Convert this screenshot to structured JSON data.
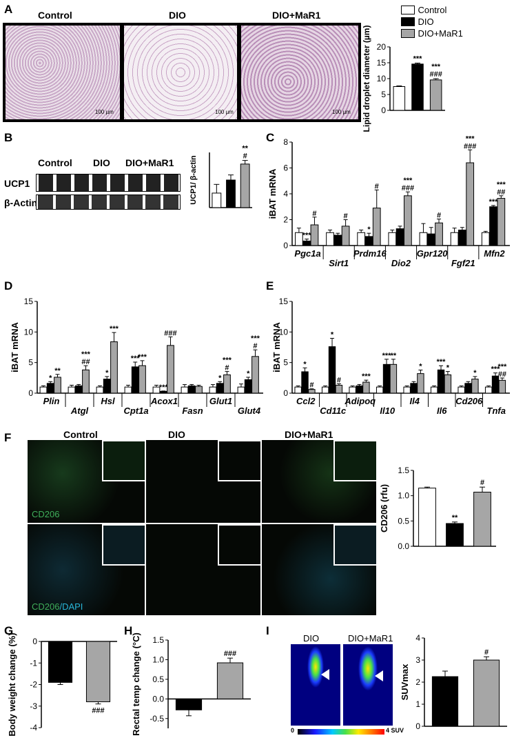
{
  "panels": {
    "A": "A",
    "B": "B",
    "C": "C",
    "D": "D",
    "E": "E",
    "F": "F",
    "G": "G",
    "H": "H",
    "I": "I"
  },
  "legend": [
    "Control",
    "DIO",
    "DIO+MaR1"
  ],
  "colors": {
    "control": "#ffffff",
    "dio": "#000000",
    "mar1": "#a6a6a6",
    "he_pink": "#d8c4d6",
    "dark": "#050805",
    "green": "#3fae5a",
    "cyan": "#29b6d8"
  },
  "panelA": {
    "titles": [
      "Control",
      "DIO",
      "DIO+MaR1"
    ],
    "scale_bar": "100 µm"
  },
  "panelB": {
    "titles": [
      "Control",
      "DIO",
      "DIO+MaR1"
    ],
    "rows": [
      "UCP1",
      "β-Actin"
    ]
  },
  "panelF": {
    "titles": [
      "Control",
      "DIO",
      "DIO+MaR1"
    ],
    "stain1": "CD206",
    "stain2_a": "CD206",
    "stain2_b": "/DAPI"
  },
  "panelI": {
    "titles": [
      "DIO",
      "DIO+MaR1"
    ],
    "colorbar_min": "0",
    "colorbar_max": "4 SUV"
  },
  "chart_data": [
    {
      "id": "A",
      "type": "bar",
      "ylabel": "Lipid droplet diameter (µm)",
      "yticks": [
        "0",
        "5",
        "10",
        "15",
        "20"
      ],
      "ylim": [
        0,
        20
      ],
      "categories": [
        "Control",
        "DIO",
        "DIO+MaR1"
      ],
      "values": [
        7.5,
        14.6,
        9.6
      ],
      "errors": [
        0.2,
        0.3,
        0.4
      ],
      "annotations": [
        "",
        "***",
        "***|###"
      ]
    },
    {
      "id": "B",
      "type": "bar",
      "ylabel": "UCP1/ β-actin",
      "categories": [
        "Control",
        "DIO",
        "DIO+MaR1"
      ],
      "values": [
        1.0,
        1.9,
        3.0
      ],
      "errors": [
        0.6,
        0.35,
        0.25
      ],
      "annotations": [
        "",
        "",
        "**|#"
      ],
      "ylim": [
        0,
        3.8
      ]
    },
    {
      "id": "C",
      "type": "bar",
      "ylabel": "iBAT mRNA",
      "yticks": [
        "0",
        "2",
        "4",
        "6",
        "8"
      ],
      "ylim": [
        0,
        8
      ],
      "categories": [
        "Pgc1a",
        "Sirt1",
        "Prdm16",
        "Dio2",
        "Gpr120",
        "Fgf21",
        "Mfn2"
      ],
      "series": [
        {
          "name": "Control",
          "values": [
            1.0,
            1.0,
            1.0,
            1.0,
            1.0,
            1.0,
            1.0
          ],
          "errors": [
            0.35,
            0.2,
            0.2,
            0.2,
            0.7,
            0.35,
            0.1
          ]
        },
        {
          "name": "DIO",
          "values": [
            0.35,
            0.8,
            0.7,
            1.3,
            0.9,
            1.2,
            3.0
          ],
          "errors": [
            0.15,
            0.15,
            0.25,
            0.2,
            0.5,
            0.2,
            0.1
          ]
        },
        {
          "name": "DIO+MaR1",
          "values": [
            1.6,
            1.5,
            2.9,
            3.85,
            1.75,
            6.4,
            3.65
          ],
          "errors": [
            0.6,
            0.5,
            1.4,
            0.3,
            0.3,
            1.0,
            0.2
          ]
        }
      ],
      "annotations": [
        [
          "",
          "***",
          "#"
        ],
        [
          "",
          "",
          "#"
        ],
        [
          "",
          "*",
          "#"
        ],
        [
          "",
          "",
          "***|###"
        ],
        [
          "",
          "",
          "#"
        ],
        [
          "",
          "",
          "***|###"
        ],
        [
          "",
          "***",
          "***|##"
        ]
      ]
    },
    {
      "id": "D",
      "type": "bar",
      "ylabel": "iBAT mRNA",
      "yticks": [
        "0",
        "5",
        "10",
        "15"
      ],
      "ylim": [
        0,
        15
      ],
      "categories": [
        "Plin",
        "Atgl",
        "Hsl",
        "Cpt1a",
        "Acox1",
        "Fasn",
        "Glut1",
        "Glut4"
      ],
      "series": [
        {
          "name": "Control",
          "values": [
            1.0,
            1.0,
            1.0,
            1.0,
            1.0,
            1.0,
            1.0,
            1.0
          ],
          "errors": [
            0.2,
            0.3,
            0.2,
            0.3,
            0.3,
            0.4,
            0.4,
            0.5
          ]
        },
        {
          "name": "DIO",
          "values": [
            1.6,
            1.2,
            2.3,
            4.3,
            0.3,
            1.2,
            1.6,
            2.2
          ]
        },
        {
          "name": "DIO+MaR1",
          "values": [
            2.6,
            3.8,
            8.4,
            4.5,
            7.8,
            1.1,
            3.0,
            6.0
          ]
        }
      ],
      "annotations": [
        [
          "",
          "*",
          "**"
        ],
        [
          "",
          "",
          "***|##"
        ],
        [
          "",
          "*",
          "***"
        ],
        [
          "",
          "***",
          "***"
        ],
        [
          "",
          "***",
          "###"
        ],
        [
          "",
          "",
          ""
        ],
        [
          "",
          "*",
          "***|#"
        ],
        [
          "",
          "*",
          "***|#"
        ]
      ]
    },
    {
      "id": "E",
      "type": "bar",
      "ylabel": "iBAT mRNA",
      "yticks": [
        "0",
        "5",
        "10",
        "15"
      ],
      "ylim": [
        0,
        15
      ],
      "categories": [
        "Ccl2",
        "Cd11c",
        "Adipoq",
        "Il10",
        "Il4",
        "Il6",
        "Cd206",
        "Tnfa"
      ],
      "series": [
        {
          "name": "Control",
          "values": [
            1.0,
            1.0,
            1.0,
            1.0,
            1.0,
            1.0,
            1.0,
            1.0
          ]
        },
        {
          "name": "DIO",
          "values": [
            3.5,
            7.6,
            1.2,
            4.7,
            1.6,
            3.8,
            1.6,
            2.8
          ]
        },
        {
          "name": "DIO+MaR1",
          "values": [
            0.6,
            1.3,
            1.8,
            4.7,
            3.2,
            3.0,
            2.3,
            2.1
          ]
        }
      ],
      "annotations": [
        [
          "",
          "*",
          "#"
        ],
        [
          "",
          "*",
          "#"
        ],
        [
          "",
          "",
          "***"
        ],
        [
          "",
          "***",
          "**"
        ],
        [
          "",
          "",
          "*"
        ],
        [
          "",
          "***",
          "*"
        ],
        [
          "",
          "",
          "*"
        ],
        [
          "",
          "***",
          "***|##"
        ]
      ]
    },
    {
      "id": "F",
      "type": "bar",
      "ylabel": "CD206 (rfu)",
      "yticks": [
        "0.0",
        "0.5",
        "1.0",
        "1.5"
      ],
      "ylim": [
        0,
        1.5
      ],
      "categories": [
        "Control",
        "DIO",
        "DIO+MaR1"
      ],
      "values": [
        1.15,
        0.45,
        1.07
      ],
      "errors": [
        0.02,
        0.03,
        0.1
      ],
      "annotations": [
        "",
        "**",
        "#"
      ]
    },
    {
      "id": "G",
      "type": "bar",
      "ylabel": "Body weight change (%)",
      "yticks": [
        "0",
        "-1",
        "-2",
        "-3",
        "-4"
      ],
      "ylim": [
        -4,
        0
      ],
      "categories": [
        "DIO",
        "DIO+MaR1"
      ],
      "values": [
        -1.9,
        -2.8
      ],
      "errors": [
        0.1,
        0.1
      ],
      "annotations": [
        "",
        "###"
      ]
    },
    {
      "id": "H",
      "type": "bar",
      "ylabel": "Rectal temp change (°C)",
      "yticks": [
        "1.5",
        "1.0",
        "0.5",
        "0.0",
        "-0.5"
      ],
      "ylim": [
        -0.75,
        1.5
      ],
      "categories": [
        "DIO",
        "DIO+MaR1"
      ],
      "values": [
        -0.28,
        0.92
      ],
      "errors": [
        0.15,
        0.12
      ],
      "annotations": [
        "",
        "###"
      ]
    },
    {
      "id": "I",
      "type": "bar",
      "ylabel": "SUVmax",
      "yticks": [
        "0",
        "1",
        "2",
        "3",
        "4"
      ],
      "ylim": [
        0,
        4
      ],
      "categories": [
        "DIO",
        "DIO+MaR1"
      ],
      "values": [
        2.25,
        3.0
      ],
      "errors": [
        0.25,
        0.15
      ],
      "annotations": [
        "",
        "#"
      ]
    }
  ]
}
